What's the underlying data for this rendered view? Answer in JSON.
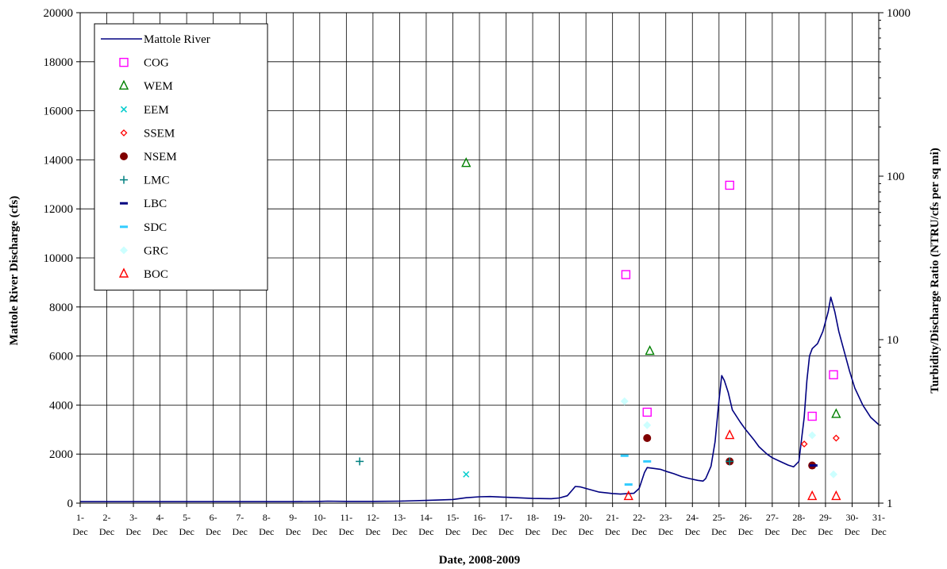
{
  "chart_data": {
    "type": "line",
    "xlabel": "Date, 2008-2009",
    "ylabel": "Mattole River Discharge (cfs)",
    "y2label": "Turbidity/Discharge Ratio (NTRU/cfs per sq mi)",
    "ylim": [
      0,
      20000
    ],
    "y2lim": [
      1,
      1000
    ],
    "y2scale": "log",
    "xlim": [
      "1-Dec",
      "31-Dec"
    ],
    "x_ticks": [
      "1-Dec",
      "2-Dec",
      "3-Dec",
      "4-Dec",
      "5-Dec",
      "6-Dec",
      "7-Dec",
      "8-Dec",
      "9-Dec",
      "10-Dec",
      "11-Dec",
      "12-Dec",
      "13-Dec",
      "14-Dec",
      "15-Dec",
      "16-Dec",
      "17-Dec",
      "18-Dec",
      "19-Dec",
      "20-Dec",
      "21-Dec",
      "22-Dec",
      "23-Dec",
      "24-Dec",
      "25-Dec",
      "26-Dec",
      "27-Dec",
      "28-Dec",
      "29-Dec",
      "30-Dec",
      "31-Dec"
    ],
    "y_ticks": [
      0,
      2000,
      4000,
      6000,
      8000,
      10000,
      12000,
      14000,
      16000,
      18000,
      20000
    ],
    "y2_ticks": [
      1,
      10,
      100,
      1000
    ],
    "grid": true,
    "legend_position": "top-left",
    "line_series": {
      "name": "Mattole River",
      "color": "#000080",
      "points": [
        [
          1.0,
          60
        ],
        [
          5.0,
          60
        ],
        [
          9.0,
          60
        ],
        [
          10.0,
          70
        ],
        [
          10.3,
          80
        ],
        [
          11.0,
          70
        ],
        [
          12.0,
          70
        ],
        [
          13.0,
          80
        ],
        [
          14.0,
          110
        ],
        [
          15.0,
          150
        ],
        [
          15.5,
          220
        ],
        [
          16.0,
          260
        ],
        [
          16.4,
          270
        ],
        [
          17.0,
          240
        ],
        [
          18.0,
          190
        ],
        [
          18.7,
          180
        ],
        [
          19.0,
          210
        ],
        [
          19.3,
          300
        ],
        [
          19.5,
          550
        ],
        [
          19.6,
          680
        ],
        [
          19.8,
          660
        ],
        [
          20.0,
          600
        ],
        [
          20.5,
          450
        ],
        [
          21.0,
          390
        ],
        [
          21.3,
          370
        ],
        [
          21.6,
          390
        ],
        [
          21.8,
          400
        ],
        [
          22.0,
          600
        ],
        [
          22.2,
          1250
        ],
        [
          22.3,
          1450
        ],
        [
          22.5,
          1420
        ],
        [
          22.8,
          1380
        ],
        [
          23.0,
          1300
        ],
        [
          23.3,
          1200
        ],
        [
          23.6,
          1080
        ],
        [
          23.9,
          1000
        ],
        [
          24.2,
          930
        ],
        [
          24.4,
          900
        ],
        [
          24.5,
          1000
        ],
        [
          24.7,
          1500
        ],
        [
          24.85,
          2500
        ],
        [
          25.0,
          4200
        ],
        [
          25.1,
          5200
        ],
        [
          25.2,
          5000
        ],
        [
          25.35,
          4500
        ],
        [
          25.5,
          3800
        ],
        [
          25.8,
          3300
        ],
        [
          26.0,
          3000
        ],
        [
          26.3,
          2600
        ],
        [
          26.5,
          2300
        ],
        [
          26.8,
          2000
        ],
        [
          27.0,
          1850
        ],
        [
          27.3,
          1700
        ],
        [
          27.6,
          1550
        ],
        [
          27.8,
          1480
        ],
        [
          28.0,
          1700
        ],
        [
          28.2,
          3500
        ],
        [
          28.3,
          5000
        ],
        [
          28.4,
          6000
        ],
        [
          28.5,
          6300
        ],
        [
          28.7,
          6500
        ],
        [
          28.9,
          7000
        ],
        [
          29.1,
          7800
        ],
        [
          29.2,
          8400
        ],
        [
          29.35,
          7800
        ],
        [
          29.5,
          7000
        ],
        [
          29.7,
          6200
        ],
        [
          29.9,
          5400
        ],
        [
          30.1,
          4700
        ],
        [
          30.4,
          4000
        ],
        [
          30.7,
          3500
        ],
        [
          31.0,
          3200
        ]
      ]
    },
    "scatter_series": [
      {
        "name": "COG",
        "color": "#ff00ff",
        "marker": "square-open",
        "points": [
          [
            21.5,
            25
          ],
          [
            22.3,
            3.6
          ],
          [
            25.4,
            88
          ],
          [
            28.5,
            3.4
          ],
          [
            29.3,
            6.1
          ]
        ]
      },
      {
        "name": "WEM",
        "color": "#008000",
        "marker": "triangle-open",
        "points": [
          [
            15.5,
            120
          ],
          [
            22.4,
            8.5
          ],
          [
            29.4,
            3.5
          ]
        ]
      },
      {
        "name": "EEM",
        "color": "#00cccc",
        "marker": "x",
        "points": [
          [
            15.5,
            1.5
          ]
        ]
      },
      {
        "name": "SSEM",
        "color": "#ff0000",
        "marker": "diamond-open",
        "points": [
          [
            28.2,
            2.3
          ],
          [
            29.4,
            2.5
          ]
        ]
      },
      {
        "name": "NSEM",
        "color": "#800000",
        "marker": "circle-filled",
        "points": [
          [
            22.3,
            2.5
          ],
          [
            25.4,
            1.8
          ],
          [
            28.5,
            1.7
          ]
        ]
      },
      {
        "name": "LMC",
        "color": "#008080",
        "marker": "plus",
        "points": [
          [
            11.5,
            1.8
          ],
          [
            25.4,
            1.8
          ]
        ]
      },
      {
        "name": "LBC",
        "color": "#000080",
        "marker": "dash",
        "points": [
          [
            28.55,
            1.7
          ]
        ]
      },
      {
        "name": "SDC",
        "color": "#33ccff",
        "marker": "dash",
        "points": [
          [
            21.45,
            1.95
          ],
          [
            22.3,
            1.8
          ],
          [
            21.6,
            1.3
          ]
        ]
      },
      {
        "name": "GRC",
        "color": "#ccffff",
        "marker": "diamond-filled",
        "points": [
          [
            21.45,
            4.2
          ],
          [
            22.3,
            3.0
          ],
          [
            28.5,
            2.6
          ],
          [
            29.3,
            1.5
          ]
        ]
      },
      {
        "name": "BOC",
        "color": "#ff0000",
        "marker": "triangle-open",
        "points": [
          [
            21.6,
            1.1
          ],
          [
            25.4,
            2.6
          ],
          [
            28.5,
            1.1
          ],
          [
            29.4,
            1.1
          ]
        ]
      }
    ]
  }
}
